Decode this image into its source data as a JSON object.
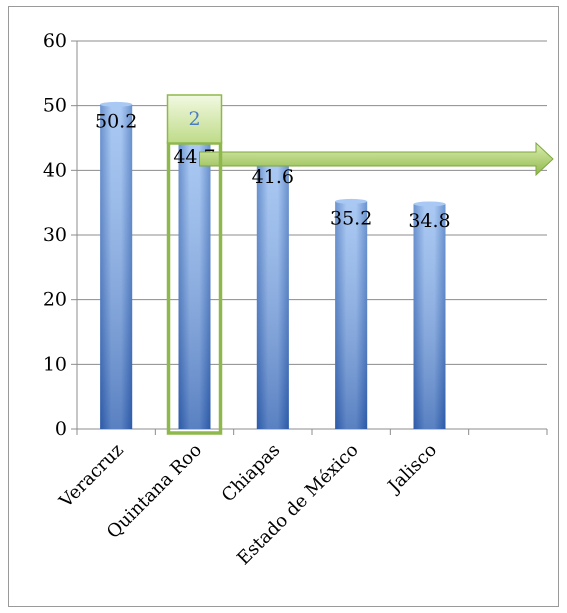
{
  "chart_data": {
    "type": "bar",
    "categories": [
      "Veracruz",
      "Quintana Roo",
      "Chiapas",
      "Estado de México",
      "Jalisco",
      ""
    ],
    "values": [
      50.2,
      44.7,
      41.6,
      35.2,
      34.8,
      null
    ],
    "data_labels": [
      "50.2",
      "44.7",
      "41.6",
      "35.2",
      "34.8",
      ""
    ],
    "ylim": [
      0,
      60
    ],
    "yticks": [
      0,
      10,
      20,
      30,
      40,
      50,
      60
    ],
    "grid": true,
    "legend": "none",
    "bar_color": "#5b8fd8",
    "highlight": {
      "category": "Quintana Roo",
      "badge": "2",
      "color": "#8fb84c",
      "arrow": "right"
    }
  }
}
